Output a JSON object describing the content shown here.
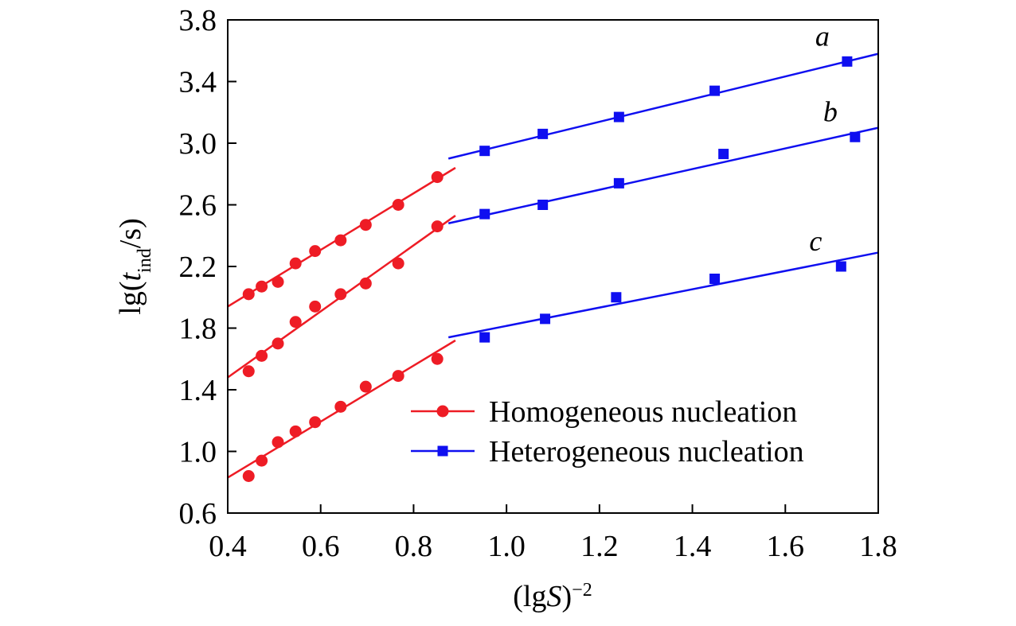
{
  "chart_data": {
    "type": "scatter",
    "title": "",
    "xlabel": "(lgS)⁻²",
    "xlabel_parts": {
      "open": "(lg",
      "var": "S",
      "close": ")",
      "sup": "−2"
    },
    "ylabel": "lg(tind/s)",
    "ylabel_parts": {
      "pre": "lg(",
      "var": "t",
      "sub": "ind",
      "post": "/s)"
    },
    "xlim": [
      0.4,
      1.8
    ],
    "ylim": [
      0.6,
      3.8
    ],
    "xticks": [
      "0.4",
      "0.6",
      "0.8",
      "1.0",
      "1.2",
      "1.4",
      "1.6",
      "1.8"
    ],
    "yticks": [
      "0.6",
      "1.0",
      "1.4",
      "1.8",
      "2.2",
      "2.6",
      "3.0",
      "3.4",
      "3.8"
    ],
    "grid": false,
    "legend_position": "bottom-right",
    "colors": {
      "homogeneous": "#ee1c25",
      "heterogeneous": "#0f0ff0"
    },
    "legend": [
      {
        "label": "Homogeneous nucleation",
        "marker": "circle",
        "color": "#ee1c25"
      },
      {
        "label": "Heterogeneous nucleation",
        "marker": "square",
        "color": "#0f0ff0"
      }
    ],
    "series": [
      {
        "name": "a",
        "label": "a",
        "kind": "homogeneous",
        "marker": "circle",
        "color": "#ee1c25",
        "x": [
          0.445,
          0.473,
          0.508,
          0.546,
          0.588,
          0.643,
          0.697,
          0.767,
          0.851
        ],
        "y": [
          2.02,
          2.07,
          2.1,
          2.22,
          2.3,
          2.37,
          2.47,
          2.6,
          2.78
        ],
        "fit": {
          "x0": 0.4,
          "y0": 1.94,
          "x1": 0.89,
          "y1": 2.84
        }
      },
      {
        "name": "b",
        "label": "b",
        "kind": "homogeneous",
        "marker": "circle",
        "color": "#ee1c25",
        "x": [
          0.445,
          0.473,
          0.508,
          0.546,
          0.588,
          0.643,
          0.697,
          0.767,
          0.851
        ],
        "y": [
          1.52,
          1.62,
          1.7,
          1.84,
          1.94,
          2.02,
          2.09,
          2.22,
          2.46
        ],
        "fit": {
          "x0": 0.4,
          "y0": 1.48,
          "x1": 0.89,
          "y1": 2.53
        }
      },
      {
        "name": "c",
        "label": "c",
        "kind": "homogeneous",
        "marker": "circle",
        "color": "#ee1c25",
        "x": [
          0.445,
          0.473,
          0.508,
          0.546,
          0.588,
          0.643,
          0.697,
          0.767,
          0.851
        ],
        "y": [
          0.84,
          0.94,
          1.06,
          1.13,
          1.19,
          1.29,
          1.42,
          1.49,
          1.6
        ],
        "fit": {
          "x0": 0.4,
          "y0": 0.83,
          "x1": 0.89,
          "y1": 1.72
        }
      },
      {
        "name": "a",
        "label": "a",
        "kind": "heterogeneous",
        "marker": "square",
        "color": "#0f0ff0",
        "x": [
          0.953,
          1.078,
          1.242,
          1.448,
          1.733
        ],
        "y": [
          2.95,
          3.06,
          3.17,
          3.34,
          3.53
        ],
        "fit": {
          "x0": 0.875,
          "y0": 2.9,
          "x1": 1.8,
          "y1": 3.58
        }
      },
      {
        "name": "b",
        "label": "b",
        "kind": "heterogeneous",
        "marker": "square",
        "color": "#0f0ff0",
        "x": [
          0.953,
          1.078,
          1.242,
          1.467,
          1.75
        ],
        "y": [
          2.54,
          2.6,
          2.74,
          2.93,
          3.04
        ],
        "fit": {
          "x0": 0.875,
          "y0": 2.48,
          "x1": 1.8,
          "y1": 3.1
        }
      },
      {
        "name": "c",
        "label": "c",
        "kind": "heterogeneous",
        "marker": "square",
        "color": "#0f0ff0",
        "x": [
          0.953,
          1.083,
          1.236,
          1.448,
          1.72
        ],
        "y": [
          1.74,
          1.86,
          2.0,
          2.12,
          2.2
        ],
        "fit": {
          "x0": 0.875,
          "y0": 1.74,
          "x1": 1.8,
          "y1": 2.29
        }
      }
    ]
  }
}
